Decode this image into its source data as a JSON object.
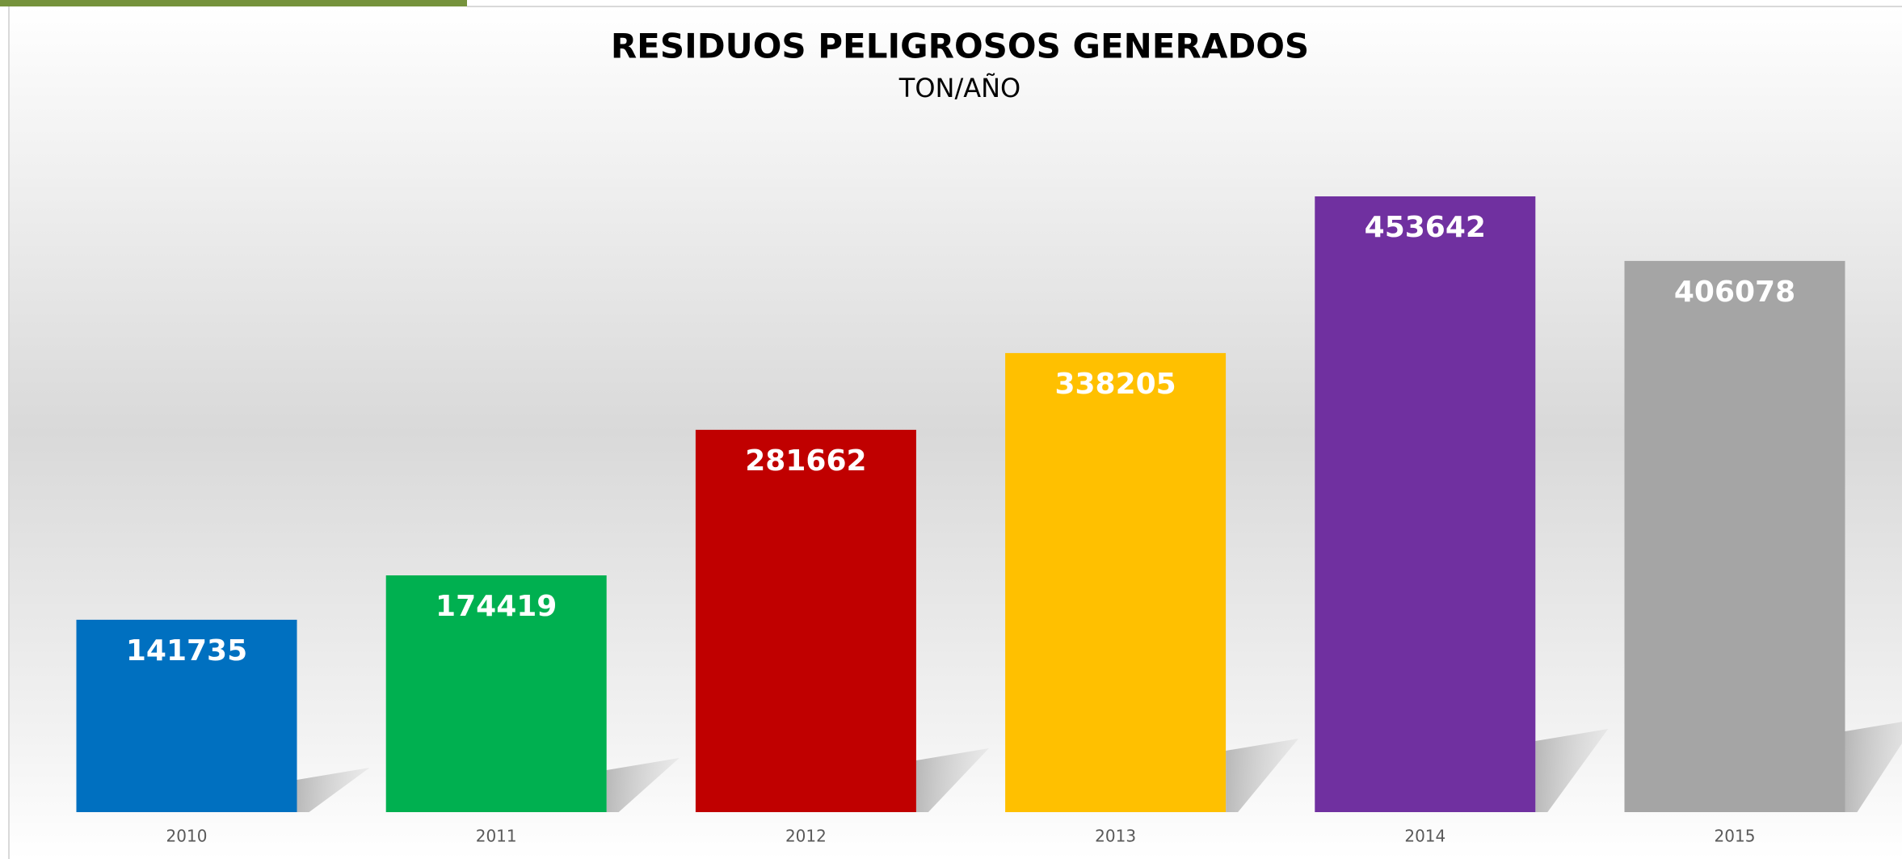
{
  "chart_data": {
    "type": "bar",
    "title": "RESIDUOS PELIGROSOS GENERADOS",
    "subtitle": "TON/AÑO",
    "categories": [
      "2010",
      "2011",
      "2012",
      "2013",
      "2014",
      "2015"
    ],
    "values": [
      141735,
      174419,
      281662,
      338205,
      453642,
      406078
    ],
    "colors": [
      "#0070c0",
      "#00b050",
      "#c00000",
      "#ffc000",
      "#7030a0",
      "#a5a5a5"
    ]
  }
}
